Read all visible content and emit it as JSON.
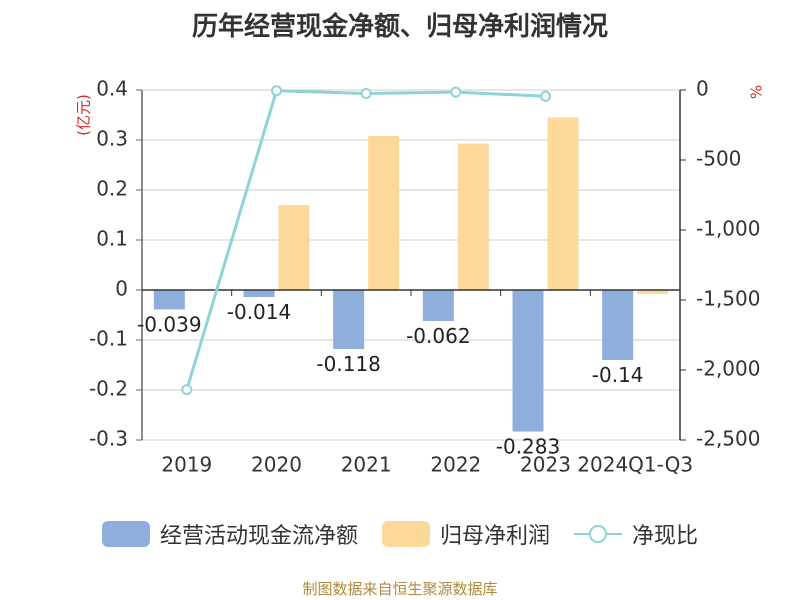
{
  "chart_data": {
    "type": "bar",
    "title": "历年经营现金净额、归母净利润情况",
    "categories": [
      "2019",
      "2020",
      "2021",
      "2022",
      "2023",
      "2024Q1-Q3"
    ],
    "series": [
      {
        "name": "经营活动现金流净额",
        "type": "bar",
        "axis": "left",
        "values": [
          -0.039,
          -0.014,
          -0.118,
          -0.062,
          -0.283,
          -0.14
        ],
        "data_labels": [
          "-0.039",
          "-0.014",
          "-0.118",
          "-0.062",
          "-0.283",
          "-0.14"
        ],
        "color": "#8eaedc"
      },
      {
        "name": "归母净利润",
        "type": "bar",
        "axis": "left",
        "values": [
          0.0,
          0.17,
          0.308,
          0.293,
          0.345,
          -0.008
        ],
        "color": "#fdd89b"
      },
      {
        "name": "净现比",
        "type": "line",
        "axis": "right",
        "values": [
          -2140,
          -5,
          -25,
          -15,
          -45,
          null
        ],
        "color": "#8ed3d9"
      }
    ],
    "y_left": {
      "label": "(亿元)",
      "range": [
        -0.3,
        0.4
      ],
      "ticks": [
        0.4,
        0.3,
        0.2,
        0.1,
        0,
        -0.1,
        -0.2,
        -0.3
      ],
      "tick_labels": [
        "0.4",
        "0.3",
        "0.2",
        "0.1",
        "0",
        "-0.1",
        "-0.2",
        "-0.3"
      ]
    },
    "y_right": {
      "label": "%",
      "range": [
        -2500,
        0
      ],
      "ticks": [
        0,
        -500,
        -1000,
        -1500,
        -2000,
        -2500
      ],
      "tick_labels": [
        "0",
        "-500",
        "-1,000",
        "-1,500",
        "-2,000",
        "-2,500"
      ]
    },
    "grid": true,
    "legend": "bottom"
  },
  "source": "制图数据来自恒生聚源数据库"
}
